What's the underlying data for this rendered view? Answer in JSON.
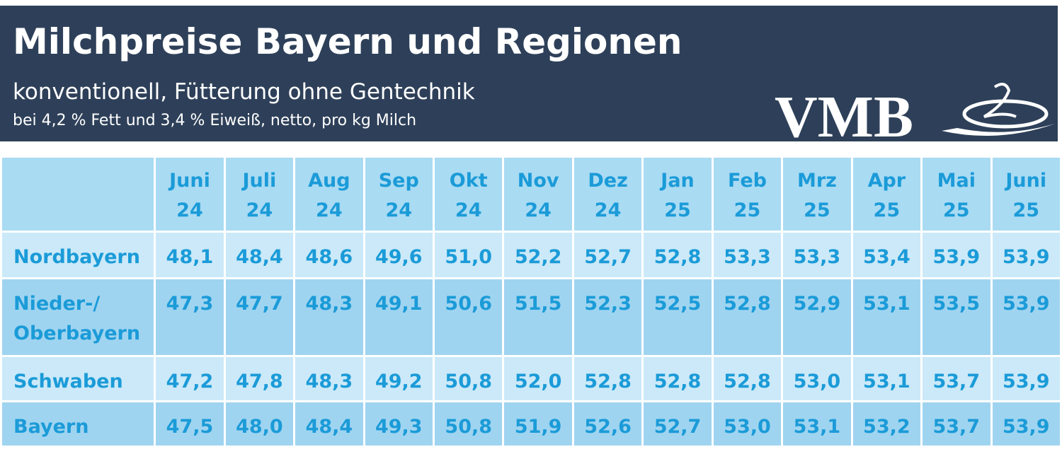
{
  "header": {
    "title": "Milchpreise Bayern und Regionen",
    "subtitle": "konventionell, Fütterung ohne Gentechnik",
    "note": "bei 4,2 % Fett und 3,4 % Eiweiß, netto, pro kg Milch",
    "logo": "VMB"
  },
  "table": {
    "columns": [
      [
        "Juni",
        "24"
      ],
      [
        "Juli",
        "24"
      ],
      [
        "Aug",
        "24"
      ],
      [
        "Sep",
        "24"
      ],
      [
        "Okt",
        "24"
      ],
      [
        "Nov",
        "24"
      ],
      [
        "Dez",
        "24"
      ],
      [
        "Jan",
        "25"
      ],
      [
        "Feb",
        "25"
      ],
      [
        "Mrz",
        "25"
      ],
      [
        "Apr",
        "25"
      ],
      [
        "Mai",
        "25"
      ],
      [
        "Juni",
        "25"
      ]
    ],
    "rows": [
      {
        "label": "Nordbayern",
        "values": [
          "48,1",
          "48,4",
          "48,6",
          "49,6",
          "51,0",
          "52,2",
          "52,7",
          "52,8",
          "53,3",
          "53,3",
          "53,4",
          "53,9",
          "53,9"
        ]
      },
      {
        "label": "Nieder-/ Oberbayern",
        "values": [
          "47,3",
          "47,7",
          "48,3",
          "49,1",
          "50,6",
          "51,5",
          "52,3",
          "52,5",
          "52,8",
          "52,9",
          "53,1",
          "53,5",
          "53,9"
        ]
      },
      {
        "label": "Schwaben",
        "values": [
          "47,2",
          "47,8",
          "48,3",
          "49,2",
          "50,8",
          "52,0",
          "52,8",
          "52,8",
          "52,8",
          "53,0",
          "53,1",
          "53,7",
          "53,9"
        ]
      },
      {
        "label": "Bayern",
        "values": [
          "47,5",
          "48,0",
          "48,4",
          "49,3",
          "50,8",
          "51,9",
          "52,6",
          "52,7",
          "53,0",
          "53,1",
          "53,2",
          "53,7",
          "53,9"
        ]
      }
    ]
  }
}
